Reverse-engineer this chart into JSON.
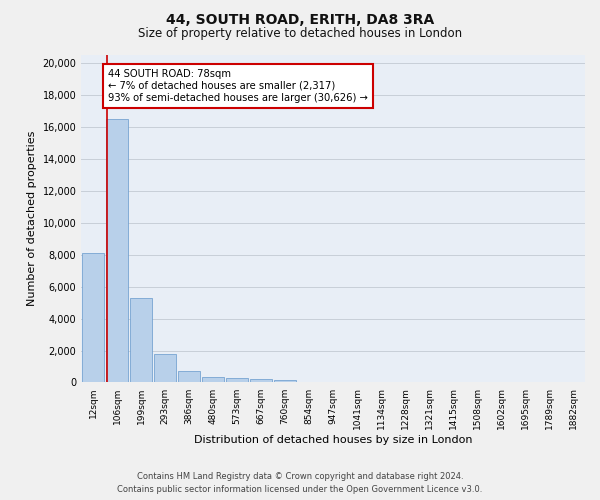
{
  "title_line1": "44, SOUTH ROAD, ERITH, DA8 3RA",
  "title_line2": "Size of property relative to detached houses in London",
  "xlabel": "Distribution of detached houses by size in London",
  "ylabel": "Number of detached properties",
  "categories": [
    "12sqm",
    "106sqm",
    "199sqm",
    "293sqm",
    "386sqm",
    "480sqm",
    "573sqm",
    "667sqm",
    "760sqm",
    "854sqm",
    "947sqm",
    "1041sqm",
    "1134sqm",
    "1228sqm",
    "1321sqm",
    "1415sqm",
    "1508sqm",
    "1602sqm",
    "1695sqm",
    "1789sqm",
    "1882sqm"
  ],
  "bar_values": [
    8100,
    16500,
    5300,
    1800,
    700,
    350,
    270,
    210,
    170,
    0,
    0,
    0,
    0,
    0,
    0,
    0,
    0,
    0,
    0,
    0,
    0
  ],
  "bar_color": "#b8d0ea",
  "bar_edge_color": "#6699cc",
  "vline_color": "#cc0000",
  "vline_x": 0.57,
  "annotation_title": "44 SOUTH ROAD: 78sqm",
  "annotation_line2": "← 7% of detached houses are smaller (2,317)",
  "annotation_line3": "93% of semi-detached houses are larger (30,626) →",
  "annotation_box_facecolor": "#ffffff",
  "annotation_box_edgecolor": "#cc0000",
  "ylim_max": 20500,
  "yticks": [
    0,
    2000,
    4000,
    6000,
    8000,
    10000,
    12000,
    14000,
    16000,
    18000,
    20000
  ],
  "grid_color": "#c8cfd8",
  "bg_color": "#e8eef6",
  "fig_facecolor": "#f0f0f0",
  "footer_line1": "Contains HM Land Registry data © Crown copyright and database right 2024.",
  "footer_line2": "Contains public sector information licensed under the Open Government Licence v3.0."
}
